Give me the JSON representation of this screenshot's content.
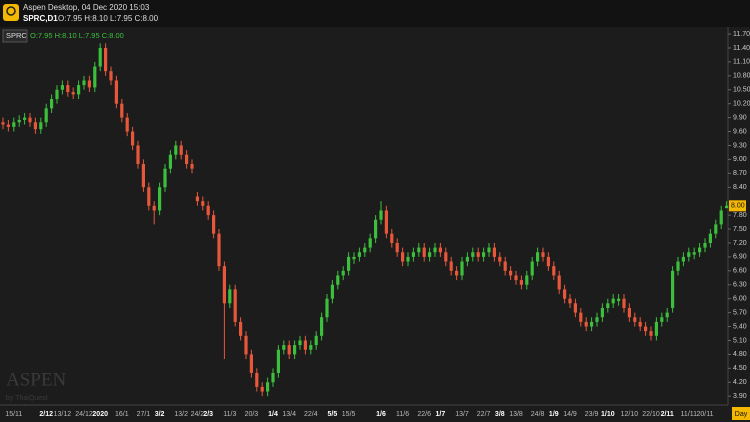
{
  "header": {
    "title": "Aspen Desktop, 04 Dec 2020 15:03",
    "symbol": "SPRC,D1",
    "ohlc": "O:7.95 H:8.10 L:7.95 C:8.00"
  },
  "watermark": {
    "brand": "ASPEN",
    "byline": "by ThaiQuest"
  },
  "chart_data": {
    "type": "candlestick",
    "legend": {
      "symbol": "SPRC",
      "ohlc": "O:7.95 H:8.10 L:7.95 C:8.00"
    },
    "x_axis_label": "Day",
    "price_tag": "8.00",
    "up_color": "#3cbf3c",
    "down_color": "#e8573a",
    "ylim": [
      3.71,
      11.83
    ],
    "yticks": [
      {
        "value": 3.9,
        "label": "3.90"
      },
      {
        "value": 4.2,
        "label": "4.20"
      },
      {
        "value": 4.5,
        "label": "4.50"
      },
      {
        "value": 4.8,
        "label": "4.80"
      },
      {
        "value": 5.1,
        "label": "5.10"
      },
      {
        "value": 5.4,
        "label": "5.40"
      },
      {
        "value": 5.7,
        "label": "5.70"
      },
      {
        "value": 6,
        "label": "6.00"
      },
      {
        "value": 6.3,
        "label": "6.30"
      },
      {
        "value": 6.6,
        "label": "6.60"
      },
      {
        "value": 6.9,
        "label": "6.90"
      },
      {
        "value": 7.2,
        "label": "7.20"
      },
      {
        "value": 7.5,
        "label": "7.50"
      },
      {
        "value": 7.8,
        "label": "7.80"
      },
      {
        "value": 8.4,
        "label": "8.40"
      },
      {
        "value": 8.7,
        "label": "8.70"
      },
      {
        "value": 9,
        "label": "9.00"
      },
      {
        "value": 9.3,
        "label": "9.30"
      },
      {
        "value": 9.6,
        "label": "9.60"
      },
      {
        "value": 9.9,
        "label": "9.90"
      },
      {
        "value": 10.2,
        "label": "10.20"
      },
      {
        "value": 10.5,
        "label": "10.50"
      },
      {
        "value": 10.8,
        "label": "10.80"
      },
      {
        "value": 11.1,
        "label": "11.10"
      },
      {
        "value": 11.4,
        "label": "11.40"
      },
      {
        "value": 11.7,
        "label": "11.70"
      }
    ],
    "categories": [
      null,
      null,
      "15/11",
      null,
      null,
      null,
      null,
      null,
      "2/12",
      null,
      null,
      "13/12",
      null,
      null,
      null,
      "24/12",
      null,
      null,
      "2020",
      null,
      null,
      null,
      "16/1",
      null,
      null,
      null,
      "27/1",
      null,
      null,
      "3/2",
      null,
      null,
      null,
      "13/2",
      null,
      null,
      "24/2",
      null,
      "2/3",
      null,
      null,
      null,
      "11/3",
      null,
      null,
      null,
      "20/3",
      null,
      null,
      null,
      "1/4",
      null,
      null,
      "13/4",
      null,
      null,
      null,
      "22/4",
      null,
      null,
      null,
      "5/5",
      null,
      null,
      "15/5",
      null,
      null,
      null,
      null,
      null,
      "1/6",
      null,
      null,
      null,
      "11/6",
      null,
      null,
      null,
      "22/6",
      null,
      null,
      "1/7",
      null,
      null,
      null,
      "13/7",
      null,
      null,
      null,
      "22/7",
      null,
      null,
      "3/8",
      null,
      null,
      "13/8",
      null,
      null,
      null,
      "24/8",
      null,
      null,
      "1/9",
      null,
      null,
      "14/9",
      null,
      null,
      null,
      "23/9",
      null,
      null,
      "1/10",
      null,
      null,
      null,
      "12/10",
      null,
      null,
      null,
      "22/10",
      null,
      null,
      "2/11",
      null,
      null,
      null,
      "11/11",
      null,
      null,
      "20/11",
      null,
      null,
      null,
      null
    ],
    "open": [
      9.8,
      9.75,
      9.7,
      9.8,
      9.85,
      9.9,
      9.8,
      9.65,
      9.8,
      10.1,
      10.3,
      10.5,
      10.6,
      10.45,
      10.4,
      10.6,
      10.7,
      10.55,
      11.0,
      11.4,
      10.9,
      10.7,
      10.2,
      9.9,
      9.6,
      9.3,
      8.9,
      8.4,
      8.0,
      7.9,
      8.4,
      8.8,
      9.1,
      9.3,
      9.1,
      8.9,
      8.2,
      8.1,
      8.0,
      7.8,
      7.4,
      6.7,
      5.9,
      6.2,
      5.5,
      5.2,
      4.8,
      4.4,
      4.1,
      4.0,
      4.2,
      4.4,
      4.9,
      5.0,
      4.8,
      5.0,
      5.1,
      4.9,
      5.0,
      5.2,
      5.6,
      6.0,
      6.3,
      6.5,
      6.6,
      6.85,
      6.9,
      7.0,
      7.1,
      7.3,
      7.7,
      7.9,
      7.4,
      7.2,
      7.0,
      6.8,
      6.9,
      7.0,
      7.1,
      6.9,
      7.0,
      7.1,
      7.0,
      6.8,
      6.6,
      6.5,
      6.8,
      6.9,
      7.0,
      6.9,
      7.0,
      7.1,
      6.9,
      6.8,
      6.6,
      6.5,
      6.4,
      6.3,
      6.5,
      6.8,
      7.0,
      6.9,
      6.7,
      6.5,
      6.2,
      6.0,
      5.9,
      5.7,
      5.5,
      5.4,
      5.5,
      5.6,
      5.8,
      5.9,
      5.95,
      6.0,
      5.8,
      5.6,
      5.5,
      5.4,
      5.3,
      5.2,
      5.5,
      5.6,
      5.8,
      6.6,
      6.8,
      6.9,
      6.95,
      7.0,
      7.1,
      7.2,
      7.4,
      7.6,
      7.95
    ],
    "high": [
      9.9,
      9.85,
      9.9,
      9.95,
      10.0,
      10.0,
      9.9,
      9.9,
      10.2,
      10.4,
      10.6,
      10.7,
      10.7,
      10.55,
      10.7,
      10.8,
      10.8,
      11.1,
      11.5,
      11.5,
      11.0,
      10.8,
      10.3,
      10.0,
      9.7,
      9.4,
      9.0,
      8.5,
      8.1,
      8.5,
      8.9,
      9.2,
      9.4,
      9.4,
      9.2,
      9.0,
      8.3,
      8.2,
      8.1,
      7.9,
      7.5,
      6.8,
      6.3,
      6.3,
      5.6,
      5.3,
      4.9,
      4.5,
      4.2,
      4.3,
      4.5,
      5.0,
      5.1,
      5.1,
      5.1,
      5.2,
      5.2,
      5.1,
      5.3,
      5.7,
      6.1,
      6.4,
      6.6,
      6.7,
      7.0,
      7.0,
      7.1,
      7.2,
      7.4,
      7.8,
      8.1,
      8.0,
      7.5,
      7.3,
      7.1,
      7.0,
      7.1,
      7.2,
      7.2,
      7.1,
      7.2,
      7.2,
      7.1,
      6.9,
      6.7,
      6.9,
      7.0,
      7.1,
      7.1,
      7.1,
      7.2,
      7.2,
      7.0,
      6.9,
      6.7,
      6.6,
      6.5,
      6.6,
      6.9,
      7.1,
      7.1,
      7.0,
      6.8,
      6.6,
      6.3,
      6.1,
      6.0,
      5.8,
      5.6,
      5.6,
      5.7,
      5.9,
      6.0,
      6.1,
      6.1,
      6.1,
      5.9,
      5.7,
      5.6,
      5.5,
      5.4,
      5.6,
      5.7,
      5.8,
      6.7,
      6.9,
      7.0,
      7.1,
      7.1,
      7.2,
      7.3,
      7.5,
      7.7,
      8.0,
      8.1
    ],
    "low": [
      9.65,
      9.6,
      9.6,
      9.7,
      9.75,
      9.7,
      9.55,
      9.55,
      9.7,
      10.0,
      10.2,
      10.4,
      10.35,
      10.3,
      10.3,
      10.5,
      10.45,
      10.45,
      10.9,
      10.8,
      10.6,
      10.1,
      9.8,
      9.5,
      9.2,
      8.8,
      8.3,
      7.9,
      7.6,
      7.8,
      8.3,
      8.7,
      9.0,
      9.0,
      8.8,
      8.7,
      8.0,
      7.9,
      7.7,
      7.3,
      6.6,
      4.7,
      5.8,
      5.4,
      5.1,
      4.7,
      4.3,
      4.0,
      3.9,
      3.9,
      4.1,
      4.3,
      4.8,
      4.7,
      4.7,
      4.9,
      4.8,
      4.8,
      4.9,
      5.1,
      5.5,
      5.9,
      6.2,
      6.4,
      6.5,
      6.75,
      6.8,
      6.9,
      7.0,
      7.2,
      7.6,
      7.3,
      7.1,
      6.9,
      6.7,
      6.7,
      6.8,
      6.9,
      6.8,
      6.8,
      6.9,
      6.9,
      6.7,
      6.5,
      6.4,
      6.4,
      6.7,
      6.8,
      6.8,
      6.8,
      6.9,
      6.8,
      6.7,
      6.5,
      6.4,
      6.3,
      6.2,
      6.2,
      6.4,
      6.7,
      6.8,
      6.6,
      6.4,
      6.1,
      5.9,
      5.8,
      5.6,
      5.4,
      5.3,
      5.3,
      5.4,
      5.5,
      5.7,
      5.8,
      5.85,
      5.7,
      5.5,
      5.4,
      5.3,
      5.2,
      5.1,
      5.1,
      5.4,
      5.5,
      5.7,
      6.5,
      6.7,
      6.8,
      6.85,
      6.9,
      7.0,
      7.1,
      7.3,
      7.5,
      7.95
    ],
    "close": [
      9.75,
      9.7,
      9.8,
      9.85,
      9.9,
      9.8,
      9.65,
      9.8,
      10.1,
      10.3,
      10.5,
      10.6,
      10.45,
      10.4,
      10.6,
      10.7,
      10.55,
      11.0,
      11.4,
      10.9,
      10.7,
      10.2,
      9.9,
      9.6,
      9.3,
      8.9,
      8.4,
      8.0,
      7.9,
      8.4,
      8.8,
      9.1,
      9.3,
      9.1,
      8.9,
      8.8,
      8.1,
      8.0,
      7.8,
      7.4,
      6.7,
      5.9,
      6.2,
      5.5,
      5.2,
      4.8,
      4.4,
      4.1,
      4.0,
      4.2,
      4.4,
      4.9,
      5.0,
      4.8,
      5.0,
      5.1,
      4.9,
      5.0,
      5.2,
      5.6,
      6.0,
      6.3,
      6.5,
      6.6,
      6.9,
      6.9,
      7.0,
      7.1,
      7.3,
      7.7,
      7.9,
      7.4,
      7.2,
      7.0,
      6.8,
      6.9,
      7.0,
      7.1,
      6.9,
      7.0,
      7.1,
      7.0,
      6.8,
      6.6,
      6.5,
      6.8,
      6.9,
      7.0,
      6.9,
      7.0,
      7.1,
      6.9,
      6.8,
      6.6,
      6.5,
      6.4,
      6.3,
      6.5,
      6.8,
      7.0,
      6.9,
      6.7,
      6.5,
      6.2,
      6.0,
      5.9,
      5.7,
      5.5,
      5.4,
      5.5,
      5.6,
      5.8,
      5.9,
      6.0,
      6.0,
      5.8,
      5.6,
      5.5,
      5.4,
      5.3,
      5.2,
      5.5,
      5.6,
      5.7,
      6.6,
      6.8,
      6.9,
      7.0,
      7.0,
      7.1,
      7.2,
      7.4,
      7.6,
      7.9,
      8.0
    ]
  }
}
